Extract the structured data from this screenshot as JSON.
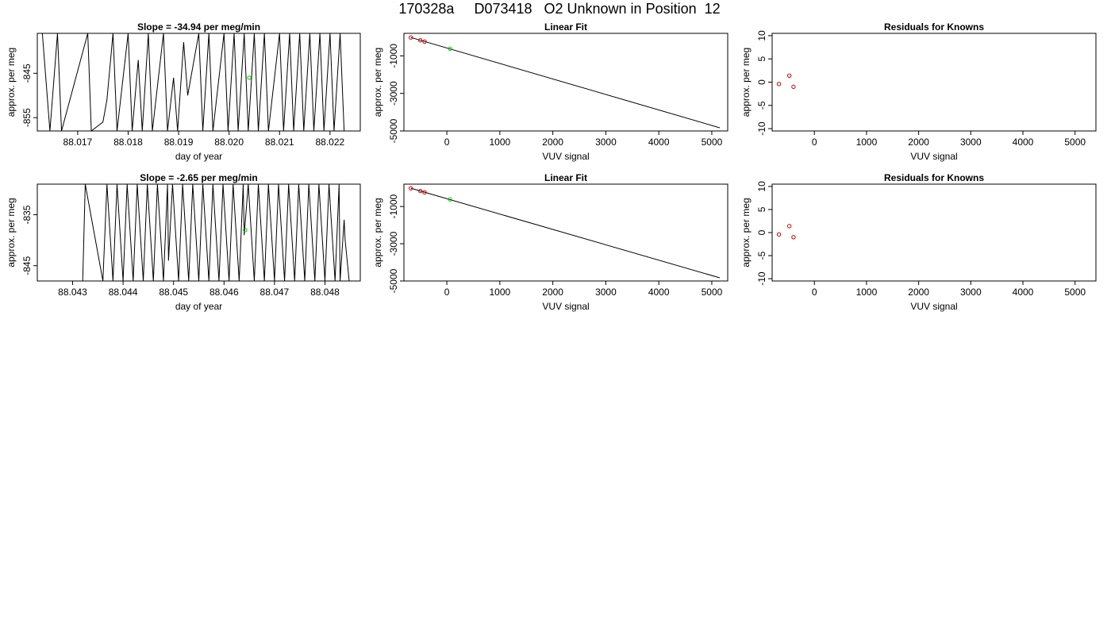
{
  "page_title": "170328a     D073418   O2 Unknown in Position  12",
  "chart_data": [
    {
      "id": "drift-1",
      "type": "line",
      "title": "Slope =  -34.94  per meg/min",
      "xlabel": "day of year",
      "ylabel": "approx. per meg",
      "xlim": [
        88.0162,
        88.0226
      ],
      "ylim": [
        -858,
        -836
      ],
      "xticks": [
        "88.017",
        "88.018",
        "88.019",
        "88.020",
        "88.021",
        "88.022"
      ],
      "yticks": [
        "-845",
        "-855"
      ],
      "ytick_values": [
        -845,
        -855
      ],
      "series": [
        {
          "color": "#000000",
          "x": [
            88.0163,
            88.01645,
            88.0166,
            88.01668,
            88.0172,
            88.01727,
            88.0175,
            88.01758,
            88.0177,
            88.01778,
            88.018,
            88.01808,
            88.0182,
            88.01828,
            88.0184,
            88.01848,
            88.0187,
            88.01878,
            88.0189,
            88.01898,
            88.0191,
            88.01918,
            88.0194,
            88.01948,
            88.0196,
            88.01968,
            88.0199,
            88.01998,
            88.0201,
            88.02018,
            88.0203,
            88.02038,
            88.0205,
            88.02058,
            88.0207,
            88.02078,
            88.021,
            88.02108,
            88.0212,
            88.02128,
            88.0214,
            88.02148,
            88.0216,
            88.02168,
            88.0218,
            88.02188,
            88.022,
            88.02208,
            88.0222,
            88.02228
          ],
          "y": [
            -836,
            -858,
            -836,
            -858,
            -836,
            -858,
            -856,
            -851,
            -836,
            -858,
            -836,
            -858,
            -842,
            -858,
            -836,
            -858,
            -836,
            -858,
            -846,
            -858,
            -838,
            -850,
            -836,
            -858,
            -836,
            -858,
            -836,
            -858,
            -836,
            -858,
            -836,
            -858,
            -836,
            -858,
            -836,
            -858,
            -836,
            -858,
            -836,
            -858,
            -836,
            -858,
            -836,
            -858,
            -836,
            -858,
            -836,
            -858,
            -836,
            -858
          ]
        }
      ],
      "points": [
        {
          "x": 88.0204,
          "y": -846.0,
          "color": "#00cc00"
        }
      ],
      "grid": false
    },
    {
      "id": "fit-1",
      "type": "line",
      "title": "Linear Fit",
      "xlabel": "VUV signal",
      "ylabel": "approx. per meg",
      "xlim": [
        -810,
        5300
      ],
      "ylim": [
        -5000,
        200
      ],
      "xticks": [
        "0",
        "1000",
        "2000",
        "3000",
        "4000",
        "5000"
      ],
      "xtick_values": [
        0,
        1000,
        2000,
        3000,
        4000,
        5000
      ],
      "yticks": [
        "-1000",
        "-3000",
        "-5000"
      ],
      "ytick_values": [
        -1000,
        -3000,
        -5000
      ],
      "series": [
        {
          "color": "#000000",
          "x": [
            -680,
            5150
          ],
          "y": [
            -20,
            -4830
          ]
        }
      ],
      "knowns": {
        "color": "#cc0000",
        "x": [
          -680,
          -500,
          -420
        ],
        "y": [
          -20,
          -170,
          -240
        ]
      },
      "unknown": {
        "color": "#00cc00",
        "x": [
          60
        ],
        "y": [
          -620
        ]
      },
      "grid": false
    },
    {
      "id": "resid-1",
      "type": "scatter",
      "title": "Residuals for Knowns",
      "xlabel": "",
      "bottom_label": "VUV signal",
      "ylabel": "approx. per meg",
      "xlim": [
        -810,
        5400
      ],
      "ylim": [
        -10.5,
        10.5
      ],
      "xticks": [
        "0",
        "1000",
        "2000",
        "3000",
        "4000",
        "5000"
      ],
      "xtick_values": [
        0,
        1000,
        2000,
        3000,
        4000,
        5000
      ],
      "yticks": [
        "10",
        "5",
        "0",
        "-5",
        "-10"
      ],
      "ytick_values": [
        10,
        5,
        0,
        -5,
        -10
      ],
      "knowns": {
        "color": "#cc0000",
        "x": [
          -680,
          -480,
          -400
        ],
        "y": [
          -0.4,
          1.4,
          -1.0
        ]
      },
      "grid": false
    },
    {
      "id": "drift-2",
      "type": "line",
      "title": "Slope =  -2.65  per meg/min",
      "xlabel": "day of year",
      "ylabel": "approx. per meg",
      "xlim": [
        88.0423,
        88.0487
      ],
      "ylim": [
        -848,
        -829
      ],
      "xticks": [
        "88.043",
        "88.044",
        "88.045",
        "88.046",
        "88.047",
        "88.048"
      ],
      "yticks": [
        "-835",
        "-845"
      ],
      "ytick_values": [
        -835,
        -845
      ],
      "series": [
        {
          "color": "#000000",
          "x": [
            88.0432,
            88.04325,
            88.0436,
            88.04368,
            88.0438,
            88.04388,
            88.044,
            88.04408,
            88.0442,
            88.04428,
            88.0444,
            88.04448,
            88.0446,
            88.04468,
            88.0448,
            88.04488,
            88.0449,
            88.04498,
            88.0451,
            88.04518,
            88.0453,
            88.04538,
            88.0455,
            88.04558,
            88.0457,
            88.04578,
            88.0459,
            88.04598,
            88.0461,
            88.04618,
            88.0463,
            88.04638,
            88.0464,
            88.04648,
            88.0466,
            88.04668,
            88.0468,
            88.04688,
            88.047,
            88.04708,
            88.0472,
            88.04728,
            88.0474,
            88.04748,
            88.0476,
            88.04768,
            88.0478,
            88.04788,
            88.048,
            88.04808,
            88.0482,
            88.04828,
            88.0483,
            88.04838,
            88.0484,
            88.04848,
            88.0485
          ],
          "y": [
            -848,
            -829,
            -848,
            -829,
            -848,
            -829,
            -848,
            -829,
            -848,
            -829,
            -848,
            -829,
            -848,
            -829,
            -848,
            -829,
            -844,
            -829,
            -848,
            -829,
            -848,
            -829,
            -848,
            -829,
            -848,
            -829,
            -848,
            -829,
            -848,
            -829,
            -848,
            -829,
            -839,
            -829,
            -848,
            -829,
            -848,
            -829,
            -848,
            -829,
            -848,
            -829,
            -848,
            -829,
            -848,
            -829,
            -848,
            -829,
            -848,
            -829,
            -848,
            -829,
            -848,
            -836,
            -840,
            -848,
            -848
          ]
        }
      ],
      "points": [
        {
          "x": 88.04642,
          "y": -838.0,
          "color": "#00cc00"
        }
      ],
      "grid": false
    },
    {
      "id": "fit-2",
      "type": "line",
      "title": "Linear Fit",
      "xlabel": "VUV signal",
      "ylabel": "approx. per meg",
      "xlim": [
        -810,
        5300
      ],
      "ylim": [
        -5000,
        200
      ],
      "xticks": [
        "0",
        "1000",
        "2000",
        "3000",
        "4000",
        "5000"
      ],
      "xtick_values": [
        0,
        1000,
        2000,
        3000,
        4000,
        5000
      ],
      "yticks": [
        "-1000",
        "-3000",
        "-5000"
      ],
      "ytick_values": [
        -1000,
        -3000,
        -5000
      ],
      "series": [
        {
          "color": "#000000",
          "x": [
            -680,
            5150
          ],
          "y": [
            -20,
            -4830
          ]
        }
      ],
      "knowns": {
        "color": "#cc0000",
        "x": [
          -680,
          -500,
          -420
        ],
        "y": [
          -20,
          -170,
          -240
        ]
      },
      "unknown": {
        "color": "#00cc00",
        "x": [
          60
        ],
        "y": [
          -620
        ]
      },
      "grid": false
    },
    {
      "id": "resid-2",
      "type": "scatter",
      "title": "Residuals for Knowns",
      "xlabel": "",
      "bottom_label": "VUV signal",
      "ylabel": "approx. per meg",
      "xlim": [
        -810,
        5400
      ],
      "ylim": [
        -10.5,
        10.5
      ],
      "xticks": [
        "0",
        "1000",
        "2000",
        "3000",
        "4000",
        "5000"
      ],
      "xtick_values": [
        0,
        1000,
        2000,
        3000,
        4000,
        5000
      ],
      "yticks": [
        "10",
        "5",
        "0",
        "-5",
        "-10"
      ],
      "ytick_values": [
        10,
        5,
        0,
        -5,
        -10
      ],
      "knowns": {
        "color": "#cc0000",
        "x": [
          -680,
          -480,
          -400
        ],
        "y": [
          -0.4,
          1.4,
          -1.0
        ]
      },
      "grid": false
    }
  ]
}
